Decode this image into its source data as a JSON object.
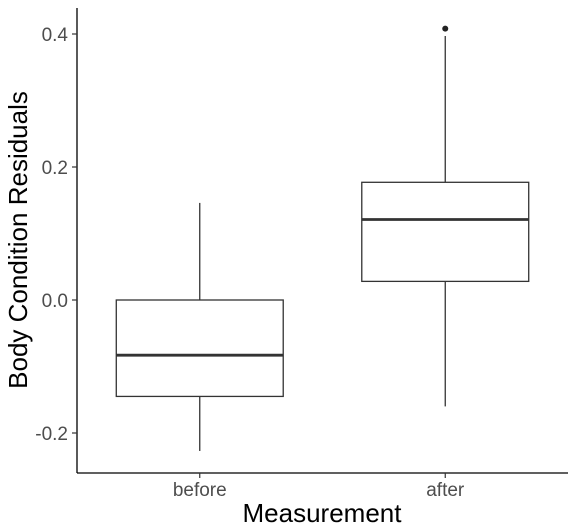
{
  "chart_data": {
    "type": "box",
    "xlabel": "Measurement",
    "ylabel": "Body Condition Residuals",
    "categories": [
      "before",
      "after"
    ],
    "ylim": [
      -0.25,
      0.44
    ],
    "y_ticks": [
      -0.2,
      0.0,
      0.2,
      0.4
    ],
    "y_tick_labels": [
      "-0.2",
      "0.0",
      "0.2",
      "0.4"
    ],
    "grid": false,
    "boxes": [
      {
        "category": "before",
        "whisker_low": -0.227,
        "q1": -0.145,
        "median": -0.083,
        "q3": 0.0,
        "whisker_high": 0.146,
        "outliers": []
      },
      {
        "category": "after",
        "whisker_low": -0.16,
        "q1": 0.028,
        "median": 0.121,
        "q3": 0.177,
        "whisker_high": 0.397,
        "outliers": [
          0.408
        ]
      }
    ]
  }
}
